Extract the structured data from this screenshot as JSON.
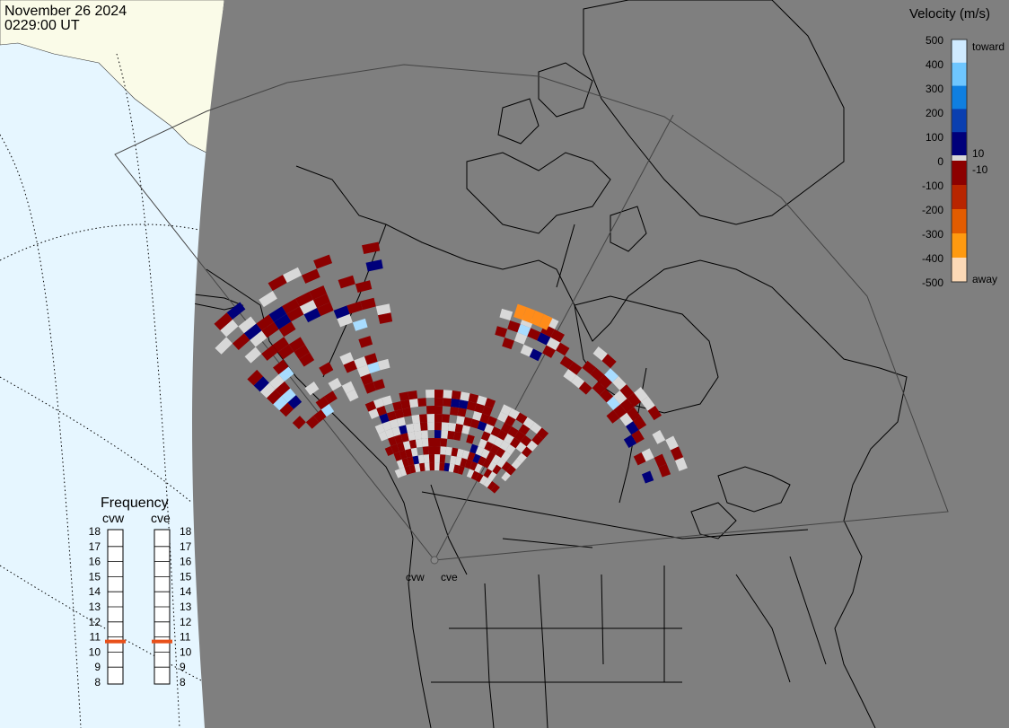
{
  "header": {
    "date": "November 26 2024",
    "time": "0229:00 UT"
  },
  "colorbar": {
    "title": "Velocity (m/s)",
    "ticks": [
      "500",
      "400",
      "300",
      "200",
      "100",
      "0",
      "-100",
      "-200",
      "-300",
      "-400",
      "-500"
    ],
    "label_toward": "toward",
    "label_away": "away",
    "label_pos": "10",
    "label_neg": "-10",
    "colors": [
      "#fcd9b6",
      "#ff9a10",
      "#e35c00",
      "#b82500",
      "#8c0000",
      "#8c0000",
      "#d8d8d8",
      "#00007a",
      "#0a3fb0",
      "#0f7fe0",
      "#6ec6ff",
      "#cfeaff"
    ]
  },
  "frequency": {
    "title": "Frequency",
    "radars": [
      {
        "name": "cvw",
        "value": 11
      },
      {
        "name": "cve",
        "value": 11
      }
    ],
    "scale": [
      "18",
      "17",
      "16",
      "15",
      "14",
      "13",
      "12",
      "11",
      "10",
      "9",
      "8"
    ],
    "marker_color": "#e8501a"
  },
  "map": {
    "station_labels": [
      "cvw",
      "cve"
    ],
    "background_gray": "#7f7f7f",
    "day_side_color": "#e6f6ff",
    "sunlit_land_color": "#fafbe8",
    "scatter_colors": {
      "ground": "#d8d8d8",
      "away_dark": "#8c0000",
      "toward_dark": "#00007a",
      "orange": "#ff8c1a",
      "light_blue": "#a8dcff"
    }
  }
}
